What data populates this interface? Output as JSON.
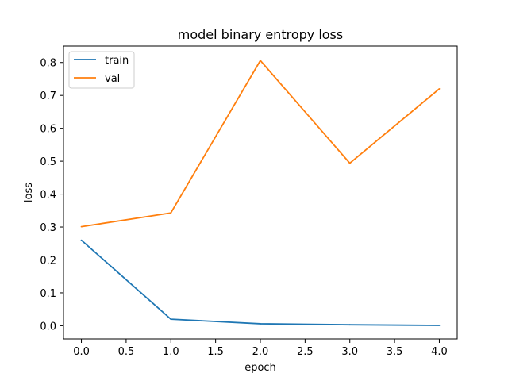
{
  "chart_data": {
    "type": "line",
    "title": "model binary entropy loss",
    "xlabel": "epoch",
    "ylabel": "loss",
    "x": [
      0,
      1,
      2,
      3,
      4
    ],
    "xlim": [
      -0.2,
      4.2
    ],
    "ylim": [
      -0.04,
      0.85
    ],
    "xticks": [
      0.0,
      0.5,
      1.0,
      1.5,
      2.0,
      2.5,
      3.0,
      3.5,
      4.0
    ],
    "xtick_labels": [
      "0.0",
      "0.5",
      "1.0",
      "1.5",
      "2.0",
      "2.5",
      "3.0",
      "3.5",
      "4.0"
    ],
    "yticks": [
      0.0,
      0.1,
      0.2,
      0.3,
      0.4,
      0.5,
      0.6,
      0.7,
      0.8
    ],
    "ytick_labels": [
      "0.0",
      "0.1",
      "0.2",
      "0.3",
      "0.4",
      "0.5",
      "0.6",
      "0.7",
      "0.8"
    ],
    "grid": false,
    "legend_position": "upper-left",
    "series": [
      {
        "name": "train",
        "color": "#1f77b4",
        "values": [
          0.26,
          0.02,
          0.006,
          0.003,
          0.001
        ]
      },
      {
        "name": "val",
        "color": "#ff7f0e",
        "values": [
          0.301,
          0.343,
          0.806,
          0.494,
          0.72
        ]
      }
    ]
  }
}
